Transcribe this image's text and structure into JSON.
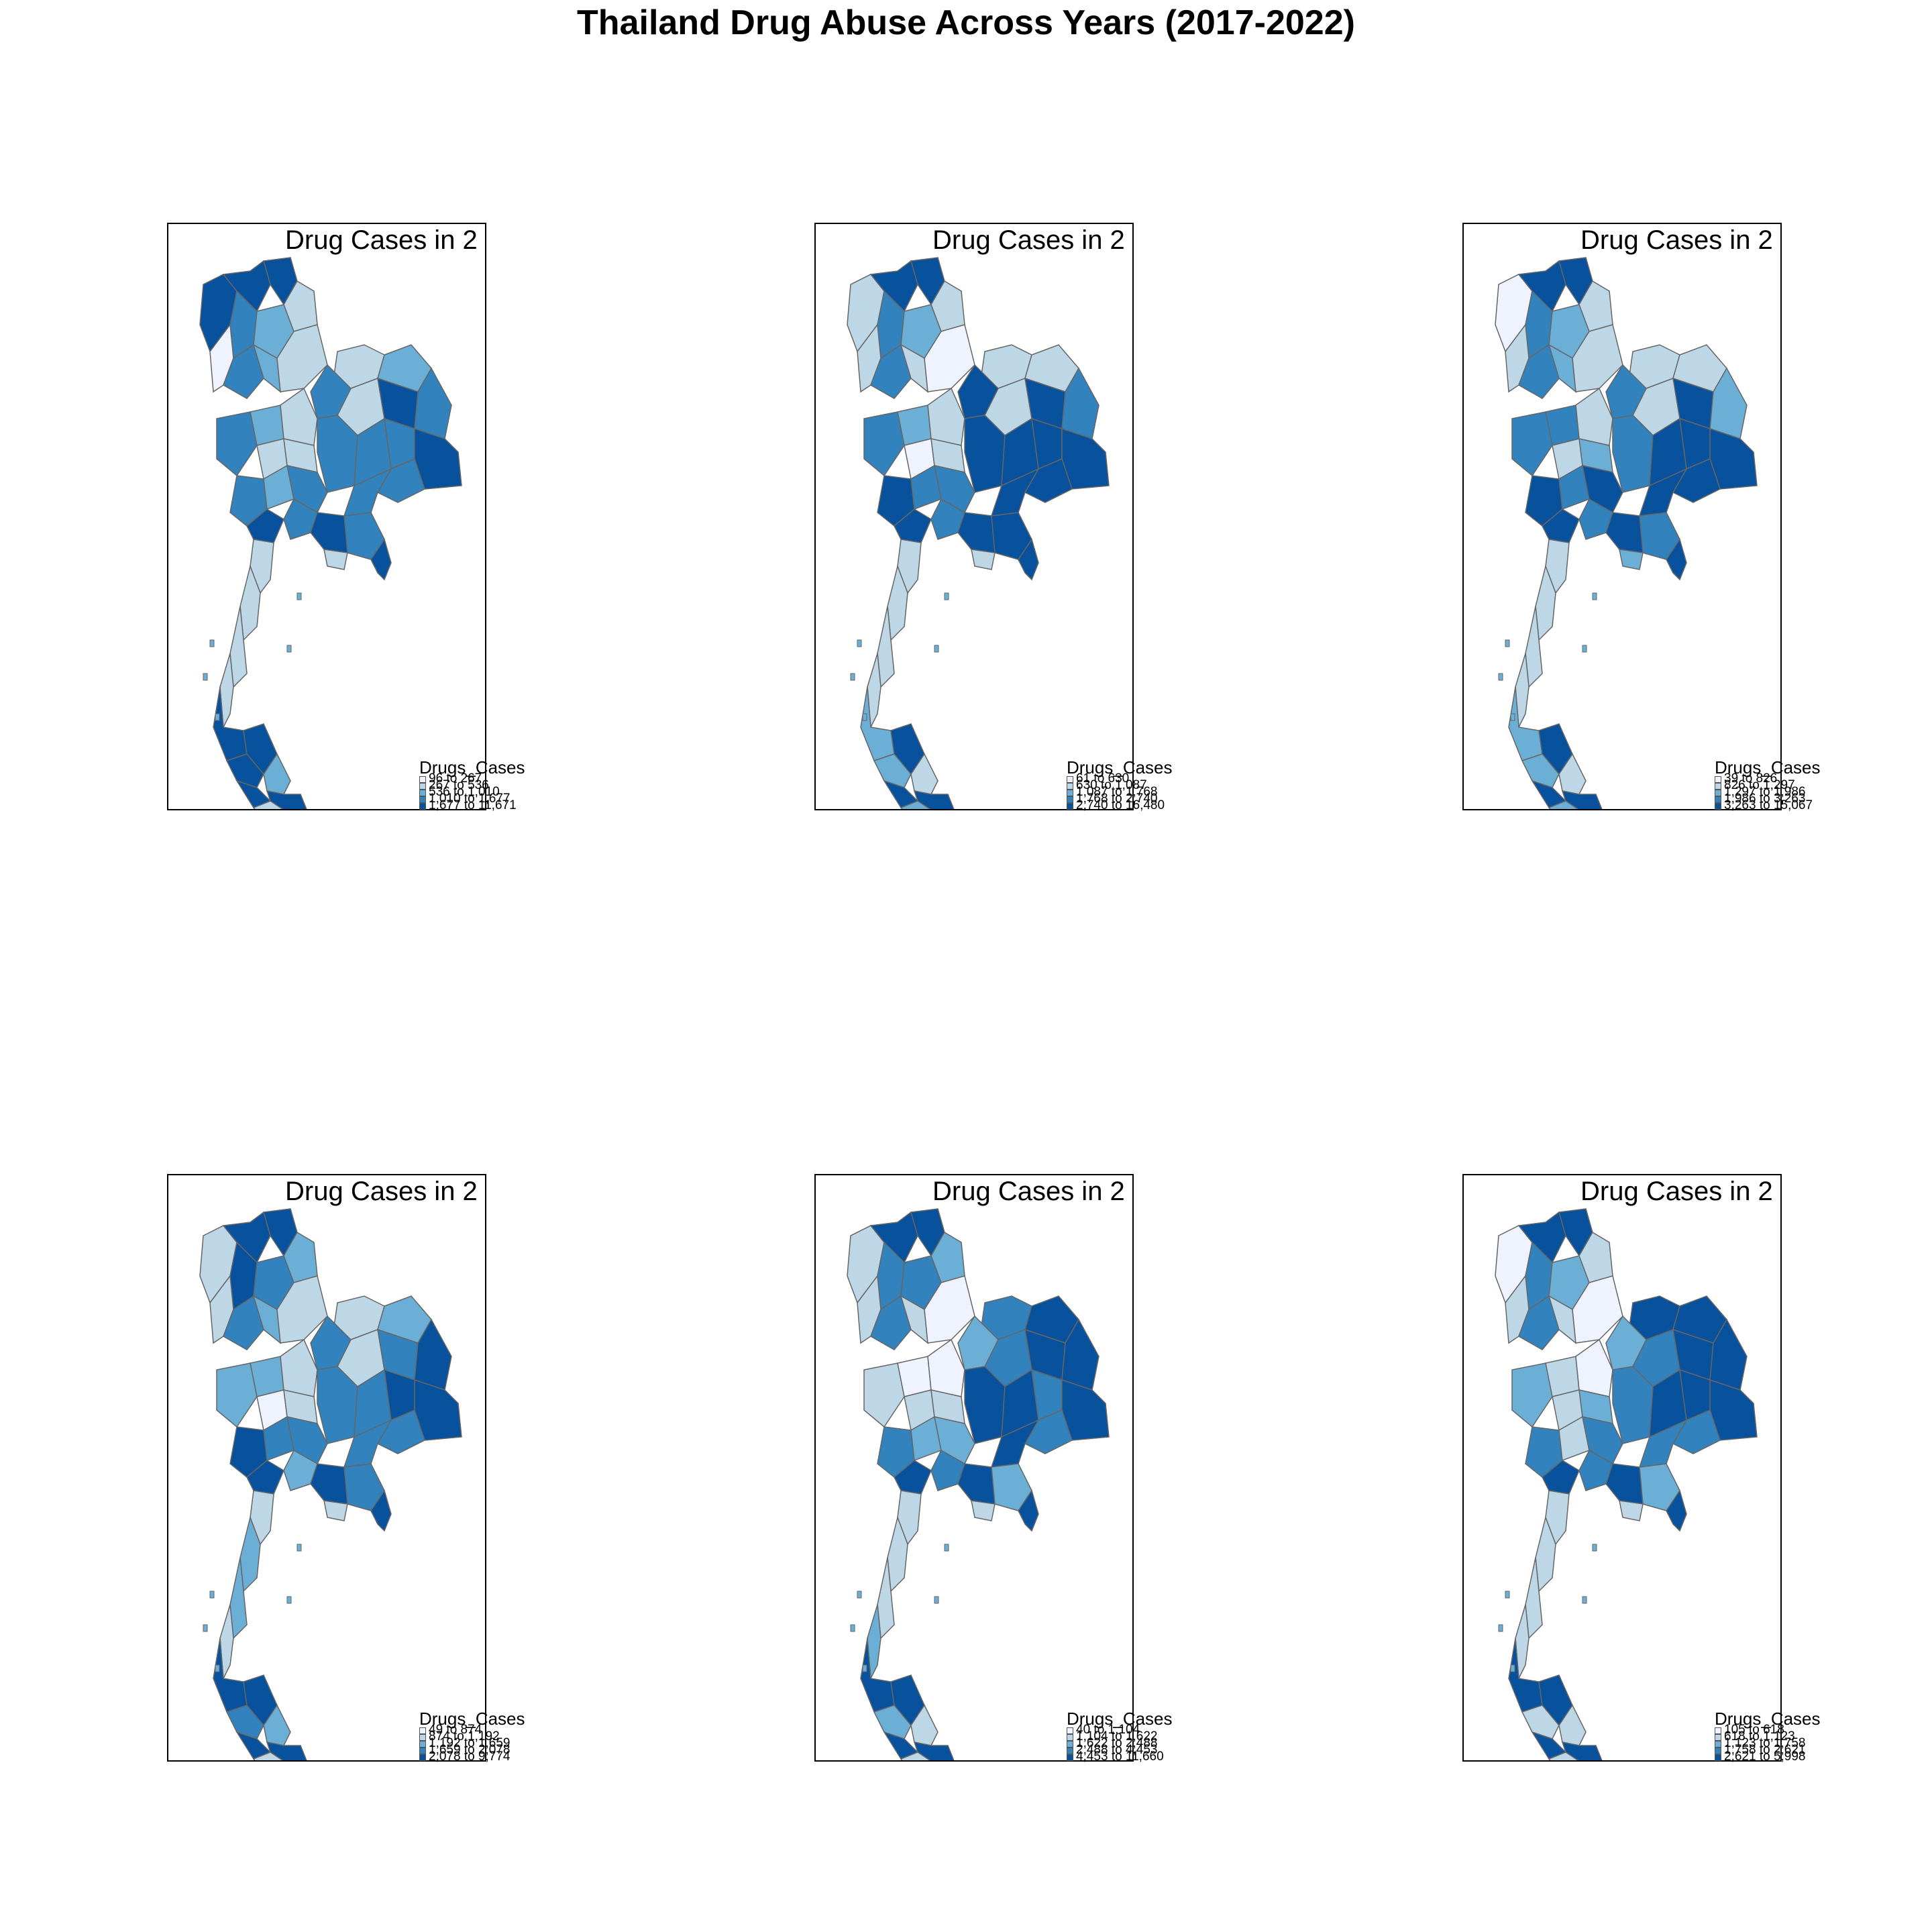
{
  "title": "Thailand Drug Abuse Across Years (2017-2022)",
  "legend_title": "Drugs_Cases",
  "palette": [
    "#eff3ff",
    "#bdd7e7",
    "#6baed6",
    "#3182bd",
    "#08519c"
  ],
  "panels": [
    {
      "title": "Drug Cases in 2",
      "legend": [
        "96 to 267",
        "267 to 536",
        "536 to 1,010",
        "1,010 to 1,677",
        "1,677 to 11,671"
      ]
    },
    {
      "title": "Drug Cases in 2",
      "legend": [
        "61 to 630",
        "630 to 1,087",
        "1,087 to 1,768",
        "1,768 to 2,740",
        "2,740 to 16,480"
      ]
    },
    {
      "title": "Drug Cases in 2",
      "legend": [
        "39 to 826",
        "826 to 1,297",
        "1,297 to 1,986",
        "1,986 to 3,263",
        "3,263 to 15,067"
      ]
    },
    {
      "title": "Drug Cases in 2",
      "legend": [
        "49 to 874",
        "874 to 1,192",
        "1,192 to 1,659",
        "1,659 to 2,078",
        "2,078 to 9,774"
      ]
    },
    {
      "title": "Drug Cases in 2",
      "legend": [
        "40 to 1,104",
        "1,104 to 1,622",
        "1,622 to 2,488",
        "2,488 to 4,453",
        "4,453 to 11,660"
      ]
    },
    {
      "title": "Drug Cases in 2",
      "legend": [
        "105 to 618",
        "618 to 1,123",
        "1,123 to 1,758",
        "1,758 to 2,621",
        "2,621 to 5,998"
      ]
    }
  ]
}
